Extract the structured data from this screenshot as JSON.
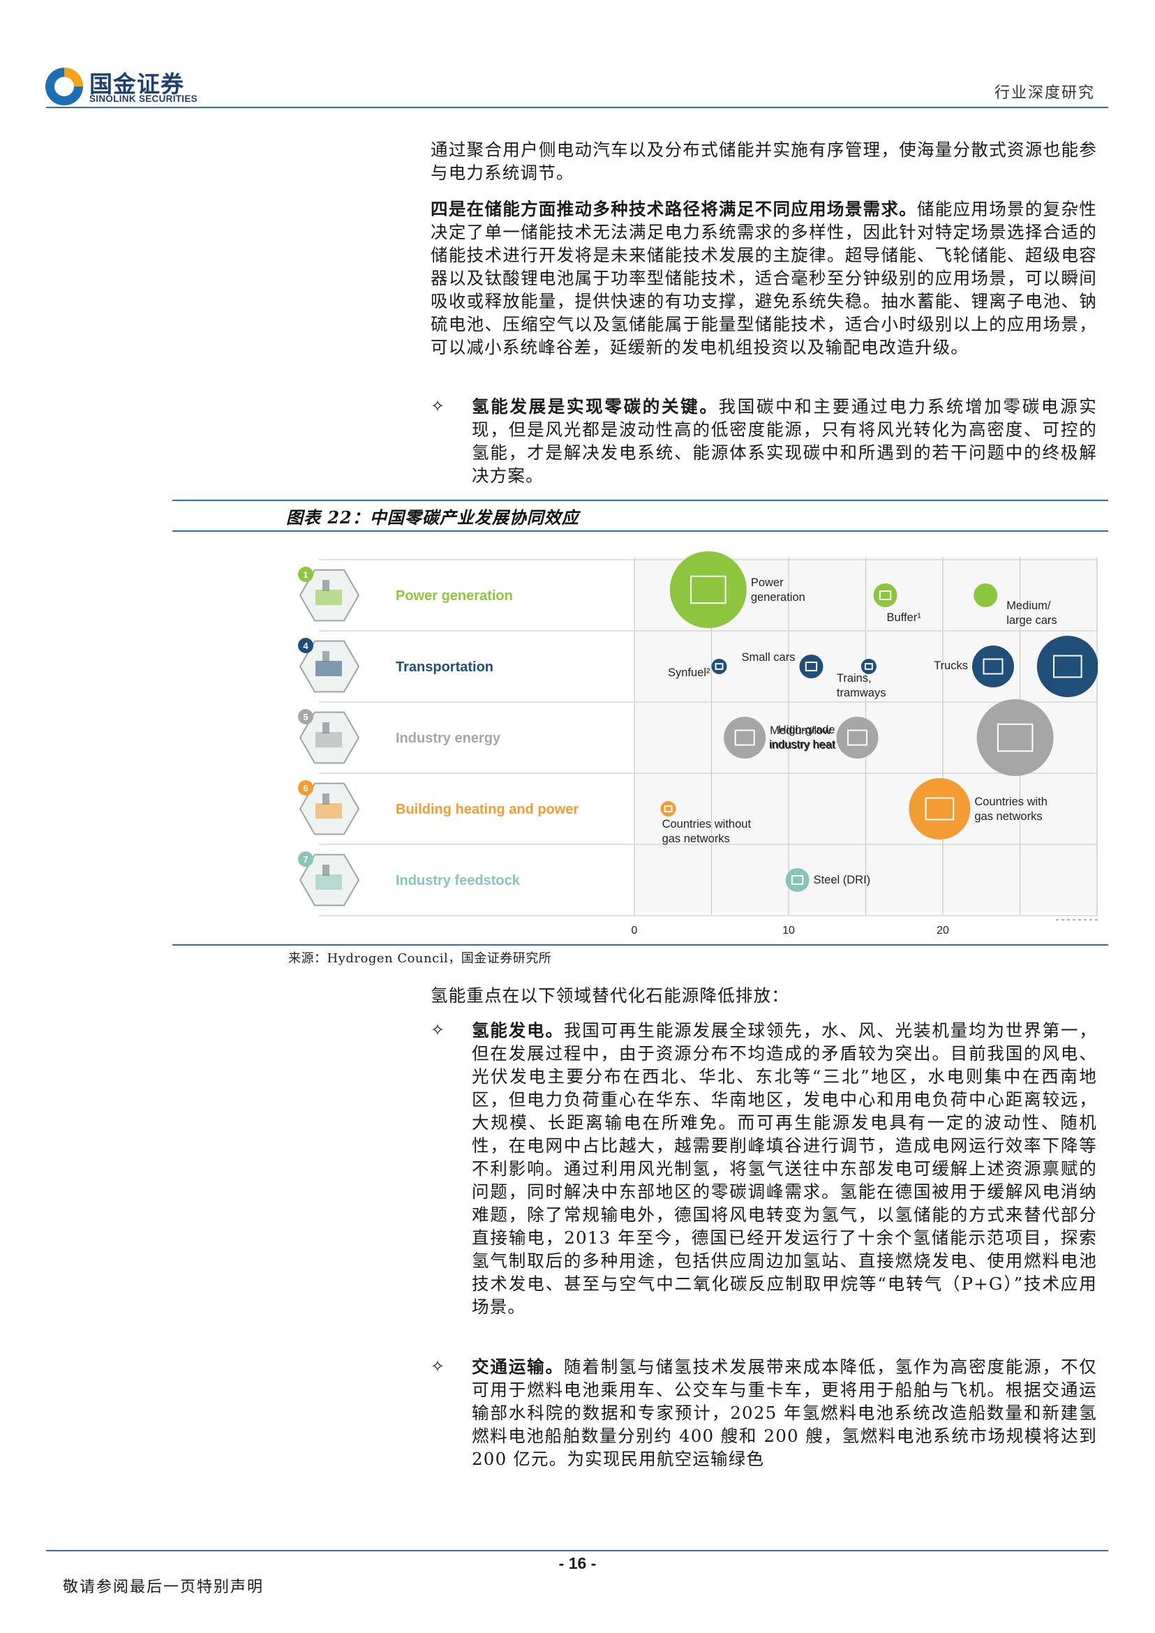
{
  "header": {
    "logo_cn": "国金证券",
    "logo_en": "SINOLINK SECURITIES",
    "report_type": "行业深度研究"
  },
  "body": {
    "p1": "通过聚合用户侧电动汽车以及分布式储能并实施有序管理，使海量分散式资源也能参与电力系统调节。",
    "p2_bold": "四是在储能方面推动多种技术路径将满足不同应用场景需求。",
    "p2_rest": "储能应用场景的复杂性决定了单一储能技术无法满足电力系统需求的多样性，因此针对特定场景选择合适的储能技术进行开发将是未来储能技术发展的主旋律。超导储能、飞轮储能、超级电容器以及钛酸锂电池属于功率型储能技术，适合毫秒至分钟级别的应用场景，可以瞬间吸收或释放能量，提供快速的有功支撑，避免系统失稳。抽水蓄能、锂离子电池、钠硫电池、压缩空气以及氢储能属于能量型储能技术，适合小时级别以上的应用场景，可以减小系统峰谷差，延缓新的发电机组投资以及输配电改造升级。",
    "bullet_symbol": "✧",
    "b1_bold": "氢能发展是实现零碳的关键。",
    "b1_rest": "我国碳中和主要通过电力系统增加零碳电源实现，但是风光都是波动性高的低密度能源，只有将风光转化为高密度、可控的氢能，才是解决发电系统、能源体系实现碳中和所遇到的若干问题中的终极解决方案。",
    "p3": "氢能重点在以下领域替代化石能源降低排放：",
    "b2_bold": "氢能发电。",
    "b2_rest": "我国可再生能源发展全球领先，水、风、光装机量均为世界第一，但在发展过程中，由于资源分布不均造成的矛盾较为突出。目前我国的风电、光伏发电主要分布在西北、华北、东北等“三北”地区，水电则集中在西南地区，但电力负荷重心在华东、华南地区，发电中心和用电负荷中心距离较远，大规模、长距离输电在所难免。而可再生能源发电具有一定的波动性、随机性，在电网中占比越大，越需要削峰填谷进行调节，造成电网运行效率下降等不利影响。通过利用风光制氢，将氢气送往中东部发电可缓解上述资源禀赋的问题，同时解决中东部地区的零碳调峰需求。氢能在德国被用于缓解风电消纳难题，除了常规输电外，德国将风电转变为氢气，以氢储能的方式来替代部分直接输电，2013 年至今，德国已经开发运行了十余个氢储能示范项目，探索氢气制取后的多种用途，包括供应周边加氢站、直接燃烧发电、使用燃料电池技术发电、甚至与空气中二氧化碳反应制取甲烷等“电转气（P+G）”技术应用场景。",
    "b3_bold": "交通运输。",
    "b3_rest": "随着制氢与储氢技术发展带来成本降低，氢作为高密度能源，不仅可用于燃料电池乘用车、公交车与重卡车，更将用于船舶与飞机。根据交通运输部水科院的数据和专家预计，2025 年氢燃料电池系统改造船数量和新建氢燃料电池船舶数量分别约 400 艘和 200 艘，氢燃料电池系统市场规模将达到 200 亿元。为实现民用航空运输绿色"
  },
  "figure": {
    "title": "图表 22：中国零碳产业发展协同效应",
    "source": "来源：Hydrogen Council，国金证券研究所"
  },
  "chart_data": {
    "type": "scatter",
    "x_ticks": [
      "0",
      "10",
      "20"
    ],
    "xlim": [
      0,
      30
    ],
    "rows": [
      {
        "num": "1",
        "label": "Power generation",
        "color": "#8cc63f"
      },
      {
        "num": "4",
        "label": "Transportation",
        "color": "#1f4e79"
      },
      {
        "num": "5",
        "label": "Industry energy",
        "color": "#a6a6a6"
      },
      {
        "num": "6",
        "label": "Building heating and power",
        "color": "#f39c33"
      },
      {
        "num": "7",
        "label": "Industry feedstock",
        "color": "#86c5b7"
      }
    ],
    "points": [
      {
        "row": 0,
        "x": 2.3,
        "size": "xl",
        "color": "#8cc63f",
        "label": "Power generation",
        "icon": "pylon-icon"
      },
      {
        "row": 0,
        "x": 15.5,
        "size": "s",
        "color": "#8cc63f",
        "label": "Buffer¹",
        "icon": "database-icon"
      },
      {
        "row": 0,
        "x": 22,
        "size": "s",
        "color": "#8cc63f",
        "label": "Medium/ large cars",
        "icon": "none"
      },
      {
        "row": 1,
        "x": 10.7,
        "size": "s",
        "color": "#1f4e79",
        "label": "Small cars",
        "icon": "car-icon"
      },
      {
        "row": 1,
        "x": 14.7,
        "size": "xs",
        "color": "#1f4e79",
        "label": "Trains, tramways",
        "icon": "train-icon"
      },
      {
        "row": 1,
        "x": 21.9,
        "size": "m",
        "color": "#1f4e79",
        "label": "Trucks",
        "icon": "bus-icon"
      },
      {
        "row": 1,
        "x": 26.1,
        "size": "l",
        "color": "#1f4e79",
        "label": "",
        "icon": "car-icon"
      },
      {
        "row": 1,
        "x": 5,
        "size": "xs",
        "color": "#1f4e79",
        "label": "Synfuel²",
        "icon": "ship-icon"
      },
      {
        "row": 2,
        "x": 5.8,
        "size": "m",
        "color": "#a6a6a6",
        "label": "Medium/low industry heat",
        "icon": "factory-icon"
      },
      {
        "row": 2,
        "x": 13.1,
        "size": "m",
        "color": "#a6a6a6",
        "label": "High-grade industry heat",
        "icon": "factory-icon"
      },
      {
        "row": 2,
        "x": 22.2,
        "size": "xl",
        "color": "#a6a6a6",
        "label": "",
        "icon": "factory-icon"
      },
      {
        "row": 3,
        "x": 1.7,
        "size": "xs",
        "color": "#f39c33",
        "label": "Countries without gas networks",
        "icon": "no-pipe-icon"
      },
      {
        "row": 3,
        "x": 17.8,
        "size": "l",
        "color": "#f39c33",
        "label": "Countries with gas networks",
        "icon": "pipe-icon"
      },
      {
        "row": 4,
        "x": 9.8,
        "size": "s",
        "color": "#86c5b7",
        "label": "Steel (DRI)",
        "icon": "steel-icon"
      }
    ]
  }
}
